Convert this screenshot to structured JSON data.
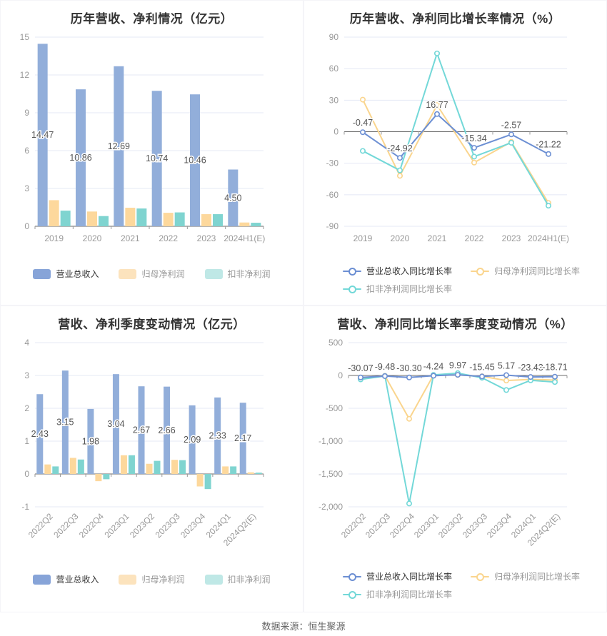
{
  "page": {
    "background": "#ffffff",
    "source_note": "数据来源：恒生聚源"
  },
  "palette": {
    "grid": "#e4e8f5",
    "axis": "#6b6b6b",
    "tick_text": "#999999",
    "data_label": "#555555",
    "title": "#333333",
    "legend_first_text": "#333333",
    "legend_rest_text": "#999999"
  },
  "chart_data": [
    {
      "id": "annual-amounts",
      "type": "bar",
      "title": "历年营收、净利情况（亿元）",
      "ylabel": "",
      "xlabel": "",
      "legend_position": "bottom",
      "grid": true,
      "categories": [
        "2019",
        "2020",
        "2021",
        "2022",
        "2023",
        "2024H1(E)"
      ],
      "ylim": [
        0,
        15
      ],
      "yticks": [
        15,
        12,
        9,
        6,
        3,
        0
      ],
      "ytick_labels": [
        "15",
        "12",
        "9",
        "6",
        "3",
        "0"
      ],
      "series": [
        {
          "name": "营业总收入",
          "color": "#92aeda",
          "legend_color": "#87a4d8",
          "values": [
            14.47,
            10.86,
            12.69,
            10.74,
            10.46,
            4.5
          ],
          "labels": [
            "14.47",
            "10.86",
            "12.69",
            "10.74",
            "10.46",
            "4.50"
          ]
        },
        {
          "name": "归母净利润",
          "color": "#fdd89c",
          "legend_color": "#fce3bd",
          "values": [
            2.07,
            1.17,
            1.47,
            1.07,
            0.96,
            0.3
          ]
        },
        {
          "name": "扣非净利润",
          "color": "#7fd4d0",
          "legend_color": "#bfe8e6",
          "values": [
            1.24,
            0.81,
            1.41,
            1.1,
            0.96,
            0.28
          ]
        }
      ]
    },
    {
      "id": "annual-growth",
      "type": "line",
      "title": "历年营收、净利同比增长率情况（%）",
      "ylabel": "",
      "xlabel": "",
      "legend_position": "bottom",
      "grid": true,
      "categories": [
        "2019",
        "2020",
        "2021",
        "2022",
        "2023",
        "2024H1(E)"
      ],
      "ylim": [
        -90,
        90
      ],
      "yticks": [
        90,
        60,
        30,
        0,
        -30,
        -60,
        -90
      ],
      "ytick_labels": [
        "90",
        "60",
        "30",
        "0",
        "-30",
        "-60",
        "-90"
      ],
      "series": [
        {
          "name": "营业总收入同比增长率",
          "color": "#6c8fd3",
          "values": [
            -0.47,
            -24.92,
            16.77,
            -15.34,
            -2.57,
            -21.22
          ],
          "labels": [
            "-0.47",
            "-24.92",
            "16.77",
            "-15.34",
            "-2.57",
            "-21.22"
          ]
        },
        {
          "name": "归母净利润同比增长率",
          "color": "#fad58e",
          "values": [
            30.5,
            -42.0,
            25.4,
            -29.4,
            -9.7,
            -67.8
          ]
        },
        {
          "name": "扣非净利润同比增长率",
          "color": "#73d8d8",
          "values": [
            -18.3,
            -36.8,
            74.5,
            -23.7,
            -10.5,
            -70.4
          ]
        }
      ]
    },
    {
      "id": "quarterly-amounts",
      "type": "bar",
      "title": "营收、净利季度变动情况（亿元）",
      "ylabel": "",
      "xlabel": "",
      "legend_position": "bottom",
      "grid": true,
      "categories": [
        "2022Q2",
        "2022Q3",
        "2022Q4",
        "2023Q1",
        "2023Q2",
        "2023Q3",
        "2023Q4",
        "2024Q1",
        "2024Q2(E)"
      ],
      "ylim": [
        -1,
        4
      ],
      "yticks": [
        4,
        3,
        2,
        1,
        0,
        -1
      ],
      "ytick_labels": [
        "4",
        "3",
        "2",
        "1",
        "0",
        "-1"
      ],
      "series": [
        {
          "name": "营业总收入",
          "color": "#92aeda",
          "legend_color": "#87a4d8",
          "values": [
            2.43,
            3.15,
            1.98,
            3.04,
            2.67,
            2.66,
            2.09,
            2.33,
            2.17
          ],
          "labels": [
            "2.43",
            "3.15",
            "1.98",
            "3.04",
            "2.67",
            "2.66",
            "2.09",
            "2.33",
            "2.17"
          ]
        },
        {
          "name": "归母净利润",
          "color": "#fdd89c",
          "legend_color": "#fce3bd",
          "values": [
            0.29,
            0.49,
            -0.22,
            0.57,
            0.31,
            0.43,
            -0.38,
            0.23,
            0.05
          ]
        },
        {
          "name": "扣非净利润",
          "color": "#7fd4d0",
          "legend_color": "#bfe8e6",
          "values": [
            0.23,
            0.44,
            -0.16,
            0.57,
            0.4,
            0.42,
            -0.46,
            0.23,
            0.04
          ]
        }
      ]
    },
    {
      "id": "quarterly-growth",
      "type": "line",
      "title": "营收、净利同比增长率季度变动情况（%）",
      "ylabel": "",
      "xlabel": "",
      "legend_position": "bottom",
      "grid": true,
      "categories": [
        "2022Q2",
        "2022Q3",
        "2022Q4",
        "2023Q1",
        "2023Q2",
        "2023Q3",
        "2023Q4",
        "2024Q1",
        "2024Q2(E)"
      ],
      "ylim": [
        -2000,
        500
      ],
      "yticks": [
        500,
        0,
        -500,
        -1000,
        -1500,
        -2000
      ],
      "ytick_labels": [
        "500",
        "0",
        "-500",
        "-1,000",
        "-1,500",
        "-2,000"
      ],
      "series": [
        {
          "name": "营业总收入同比增长率",
          "color": "#6c8fd3",
          "values": [
            -30.07,
            -9.48,
            -30.3,
            -4.24,
            9.97,
            -15.45,
            5.17,
            -23.43,
            -18.71
          ],
          "labels": [
            "-30.07",
            "-9.48",
            "-30.30",
            "-4.24",
            "9.97",
            "-15.45",
            "5.17",
            "-23.43",
            "-18.71"
          ]
        },
        {
          "name": "归母净利润同比增长率",
          "color": "#fad58e",
          "values": [
            -45,
            -5,
            -660,
            5,
            8,
            -12,
            -78,
            -60,
            -70
          ]
        },
        {
          "name": "扣非净利润同比增长率",
          "color": "#73d8d8",
          "values": [
            -60,
            -8,
            -1950,
            8,
            35,
            -35,
            -222,
            -74,
            -100
          ]
        }
      ]
    }
  ]
}
